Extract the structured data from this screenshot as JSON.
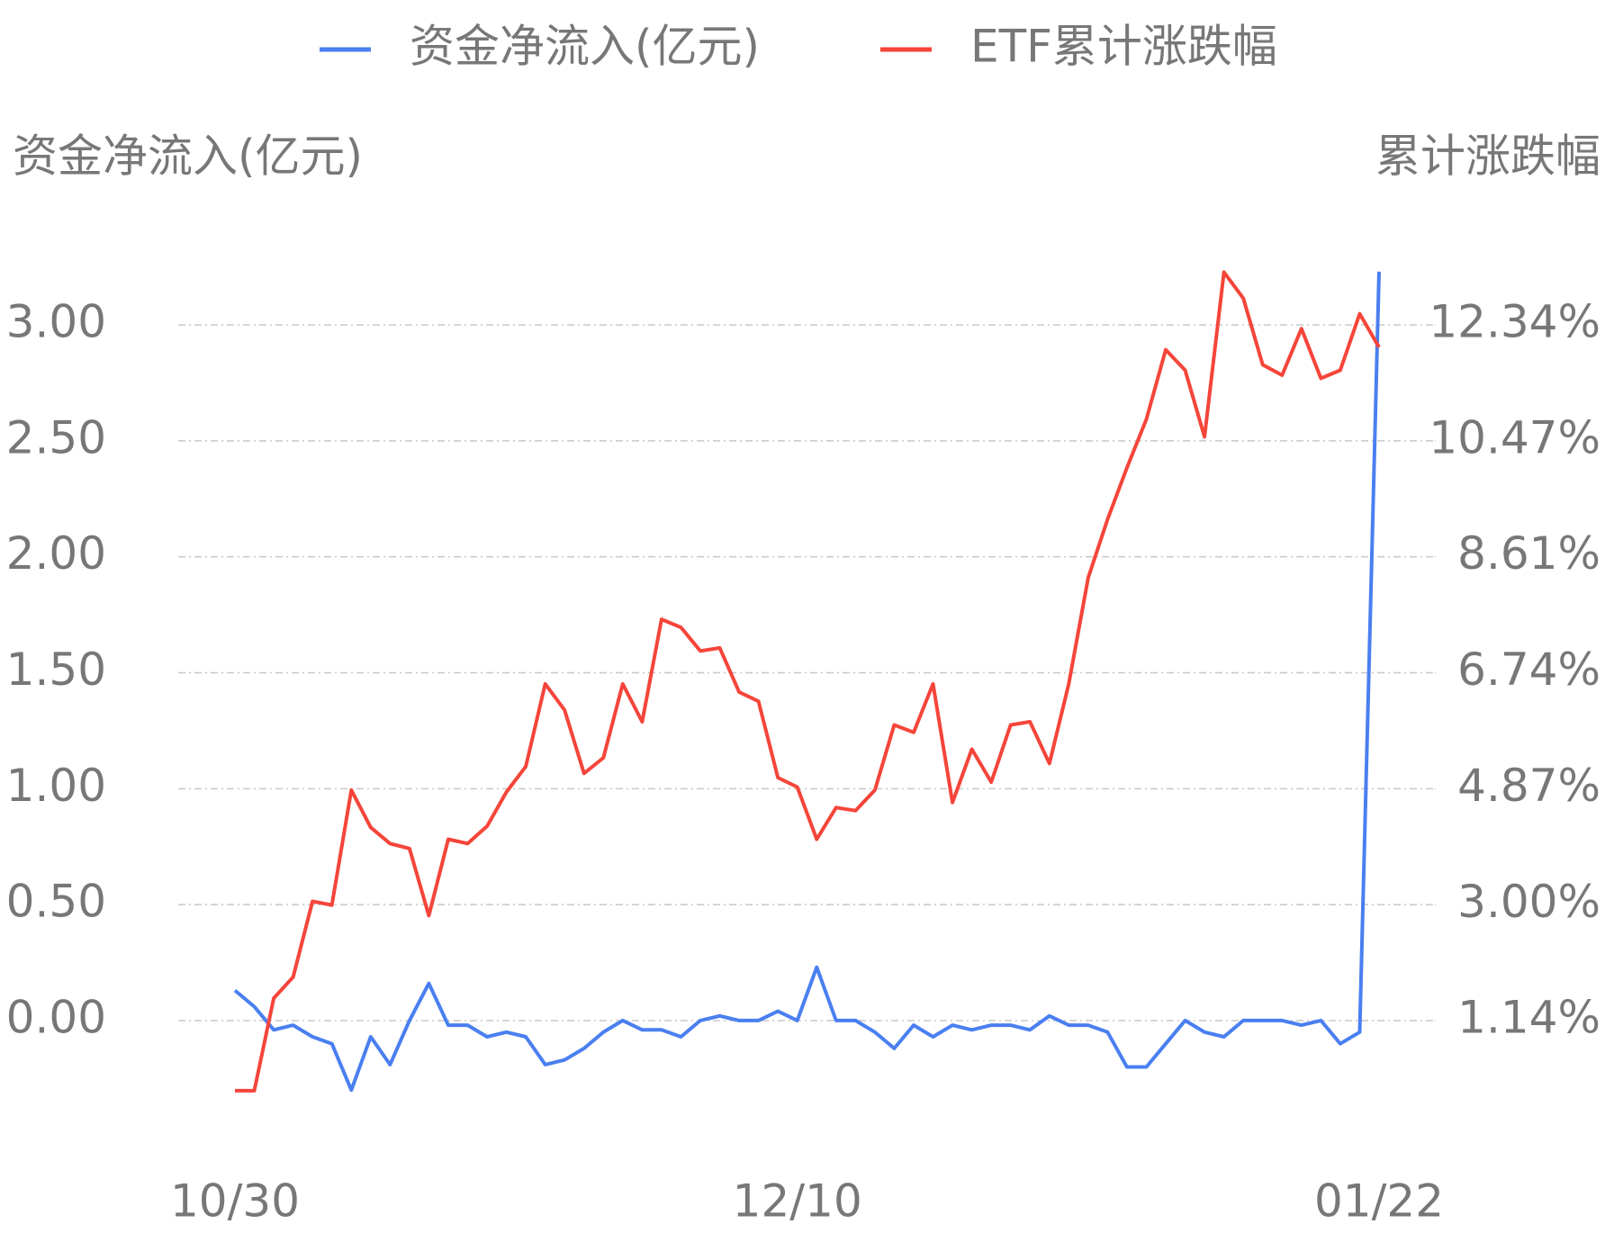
{
  "chart_data": {
    "type": "line",
    "categories": [
      "10/30",
      null,
      null,
      null,
      null,
      null,
      null,
      null,
      null,
      null,
      null,
      null,
      null,
      null,
      null,
      null,
      null,
      null,
      null,
      null,
      null,
      null,
      null,
      null,
      null,
      null,
      null,
      null,
      null,
      "12/10",
      null,
      null,
      null,
      null,
      null,
      null,
      null,
      null,
      null,
      null,
      null,
      null,
      null,
      null,
      null,
      null,
      null,
      null,
      null,
      null,
      null,
      null,
      null,
      null,
      null,
      null,
      null,
      null,
      null,
      "01/22"
    ],
    "y_label": "资金净流入(亿元)",
    "y2_label": "累计涨跌幅",
    "ylim": [
      -0.4,
      3.4
    ],
    "yticks": [
      {
        "value": 0,
        "label": "0.00"
      },
      {
        "value": 0.5,
        "label": "0.50"
      },
      {
        "value": 1,
        "label": "1.00"
      },
      {
        "value": 1.5,
        "label": "1.50"
      },
      {
        "value": 2,
        "label": "2.00"
      },
      {
        "value": 2.5,
        "label": "2.50"
      },
      {
        "value": 3,
        "label": "3.00"
      }
    ],
    "y2lim": [
      -0.353,
      13.833
    ],
    "y2ticks": [
      {
        "value": 1.14,
        "label": "1.14%"
      },
      {
        "value": 3.0,
        "label": "3.00%"
      },
      {
        "value": 4.87,
        "label": "4.87%"
      },
      {
        "value": 6.74,
        "label": "6.74%"
      },
      {
        "value": 8.61,
        "label": "8.61%"
      },
      {
        "value": 10.47,
        "label": "10.47%"
      },
      {
        "value": 12.34,
        "label": "12.34%"
      }
    ],
    "grid": true,
    "legend": "top",
    "series": [
      {
        "name": "资金净流入(亿元)",
        "color": "#4a7ff0",
        "values": [
          0.13,
          0.06,
          -0.04,
          -0.02,
          -0.07,
          -0.1,
          -0.3,
          -0.07,
          -0.19,
          0.0,
          0.16,
          -0.02,
          -0.02,
          -0.07,
          -0.05,
          -0.07,
          -0.19,
          -0.17,
          -0.12,
          -0.05,
          0.0,
          -0.04,
          -0.04,
          -0.07,
          0.0,
          0.02,
          0.0,
          0.0,
          0.04,
          0.0,
          0.23,
          0.0,
          0.0,
          -0.05,
          -0.12,
          -0.02,
          -0.07,
          -0.02,
          -0.04,
          -0.02,
          -0.02,
          -0.04,
          0.02,
          -0.02,
          -0.02,
          -0.05,
          -0.2,
          -0.2,
          -0.1,
          0.0,
          -0.05,
          -0.07,
          0.0,
          0.0,
          0.0,
          -0.02,
          0.0,
          -0.1,
          -0.05,
          3.23
        ]
      },
      {
        "name": "ETF累计涨跌幅",
        "color": "#f5453a",
        "axis": "y2",
        "values": [
          0.01,
          0.01,
          1.5,
          1.84,
          3.06,
          3.0,
          4.85,
          4.25,
          3.99,
          3.91,
          2.83,
          4.06,
          3.99,
          4.27,
          4.82,
          5.23,
          6.56,
          6.14,
          5.12,
          5.37,
          6.56,
          5.95,
          7.6,
          7.47,
          7.09,
          7.14,
          6.43,
          6.28,
          5.05,
          4.9,
          4.06,
          4.57,
          4.52,
          4.85,
          5.9,
          5.78,
          6.56,
          4.65,
          5.51,
          4.98,
          5.9,
          5.95,
          5.28,
          6.56,
          8.27,
          9.21,
          10.04,
          10.82,
          11.94,
          11.61,
          10.54,
          13.19,
          12.77,
          11.7,
          11.53,
          12.28,
          11.48,
          11.61,
          12.52,
          11.98
        ]
      }
    ]
  }
}
